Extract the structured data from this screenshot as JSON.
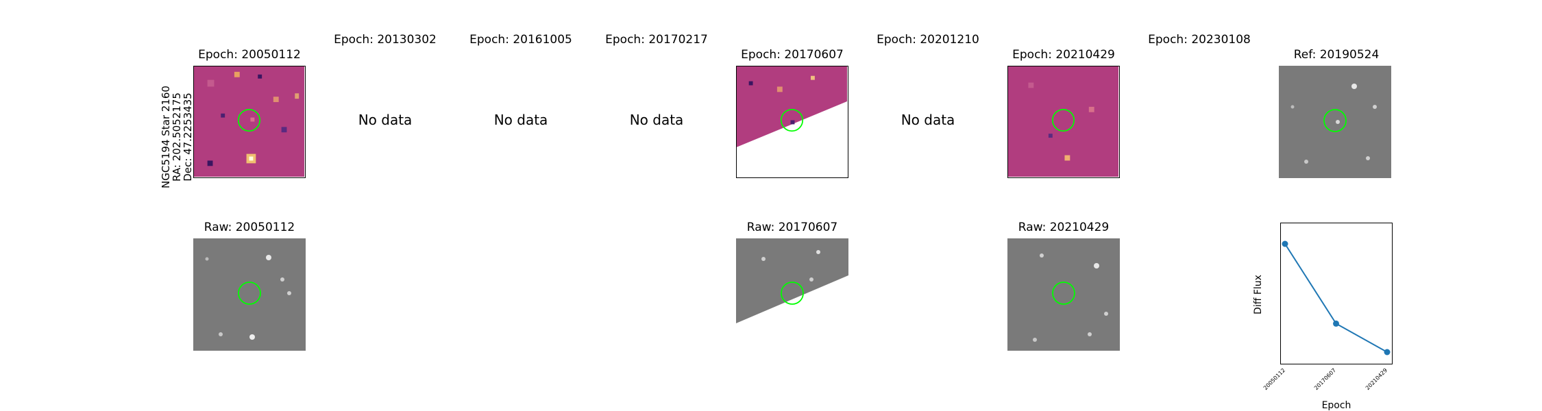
{
  "figure": {
    "row_label": [
      "NGC5194 Star 2160",
      "RA: 202.5052175",
      "Dec: 47.2253435"
    ],
    "no_data_text": "No data",
    "top_row": [
      {
        "title": "Epoch: 20050112",
        "kind": "diff"
      },
      {
        "title": "Epoch: 20130302",
        "kind": "none"
      },
      {
        "title": "Epoch: 20161005",
        "kind": "none"
      },
      {
        "title": "Epoch: 20170217",
        "kind": "none"
      },
      {
        "title": "Epoch: 20170607",
        "kind": "diff-partial"
      },
      {
        "title": "Epoch: 20201210",
        "kind": "none"
      },
      {
        "title": "Epoch: 20210429",
        "kind": "diff"
      },
      {
        "title": "Epoch: 20230108",
        "kind": "none"
      },
      {
        "title": "Ref: 20190524",
        "kind": "raw"
      }
    ],
    "bottom_row": [
      {
        "title": "Raw: 20050112",
        "kind": "raw"
      },
      {
        "title": "Raw: 20170607",
        "kind": "raw-partial"
      },
      {
        "title": "Raw: 20210429",
        "kind": "raw"
      }
    ],
    "colors": {
      "diff_bg": "#b13d7f",
      "raw_bg": "#7a7a7a",
      "circle": "#00ff00",
      "line": "#1f77b4"
    }
  },
  "chart_data": {
    "type": "line",
    "title": "",
    "xlabel": "Epoch",
    "ylabel": "Diff Flux",
    "categories": [
      "20050112",
      "20170607",
      "20210429"
    ],
    "series": [
      {
        "values": [
          1.0,
          0.3,
          0.05
        ]
      }
    ],
    "y_ticks_shown": false,
    "grid": false
  }
}
